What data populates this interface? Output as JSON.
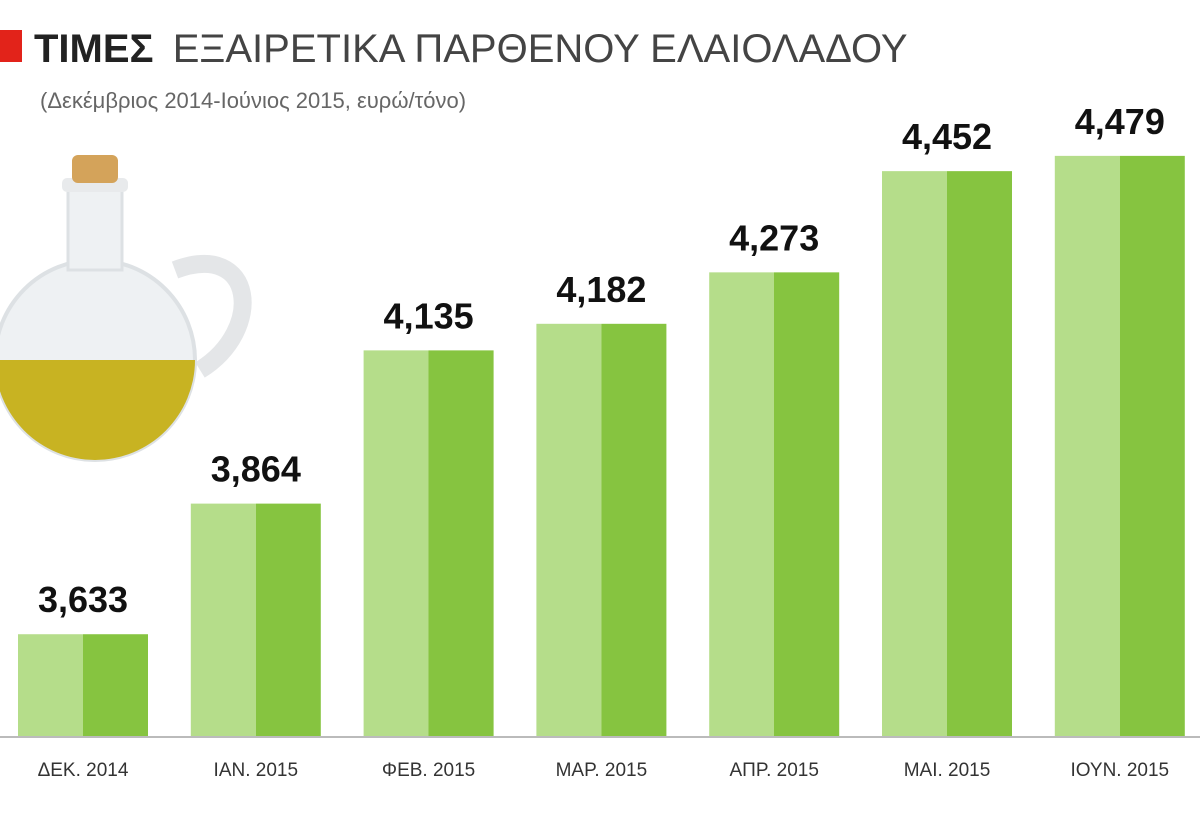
{
  "chart_data": {
    "type": "bar",
    "title": [
      "ΤΙΜΕΣ",
      "ΕΞΑΙΡΕΤΙΚΑ ΠΑΡΘΕΝΟΥ ΕΛΑΙΟΛΑΔΟΥ"
    ],
    "subtitle": "(Δεκέμβριος 2014-Ιούνιος 2015, ευρώ/τόνο)",
    "categories": [
      "ΔΕΚ. 2014",
      "ΙΑΝ. 2015",
      "ΦΕΒ. 2015",
      "ΜΑΡ. 2015",
      "ΑΠΡ. 2015",
      "ΜΑΙ. 2015",
      "ΙΟΥΝ. 2015"
    ],
    "values": [
      3633,
      3864,
      4135,
      4182,
      4273,
      4452,
      4479
    ],
    "value_labels": [
      "3,633",
      "3,864",
      "4,135",
      "4,182",
      "4,273",
      "4,452",
      "4,479"
    ],
    "colors": [
      "#b5dd8a",
      "#86c440"
    ],
    "ylim": [
      3453,
      4500
    ]
  }
}
